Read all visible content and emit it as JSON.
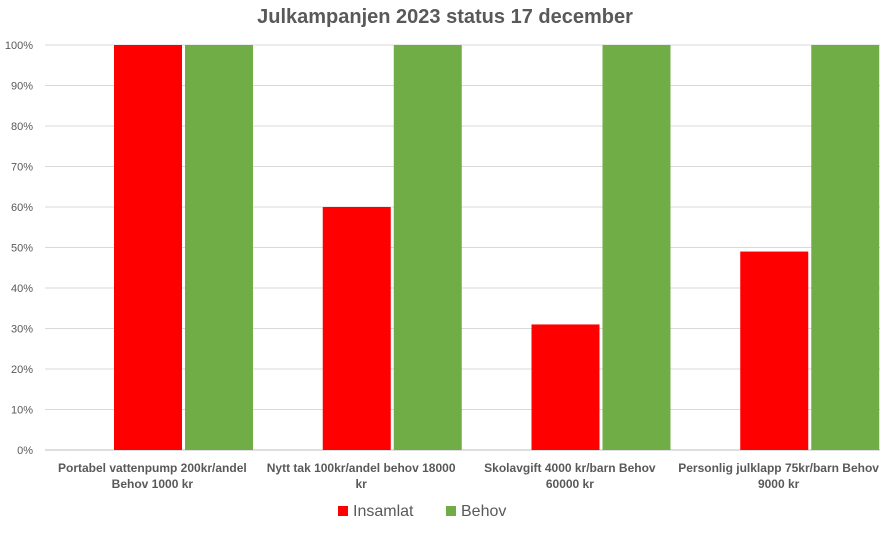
{
  "chart_data": {
    "type": "bar",
    "title": "Julkampanjen 2023 status 17 december",
    "ylabel": "",
    "xlabel": "",
    "ylim": [
      0,
      100
    ],
    "y_ticks": [
      "0%",
      "10%",
      "20%",
      "30%",
      "40%",
      "50%",
      "60%",
      "70%",
      "80%",
      "90%",
      "100%"
    ],
    "grid": true,
    "legend_position": "bottom",
    "categories": [
      [
        "Portabel vattenpump 200kr/andel",
        "Behov 1000 kr"
      ],
      [
        "Nytt tak 100kr/andel behov 18000",
        "kr"
      ],
      [
        "Skolavgift 4000 kr/barn Behov",
        "60000 kr"
      ],
      [
        "Personlig julklapp 75kr/barn Behov",
        "9000 kr"
      ]
    ],
    "series": [
      {
        "name": "Insamlat",
        "color": "#ff0000",
        "values": [
          100,
          60,
          31,
          49
        ]
      },
      {
        "name": "Behov",
        "color": "#70ad47",
        "values": [
          100,
          100,
          100,
          100
        ]
      }
    ]
  }
}
